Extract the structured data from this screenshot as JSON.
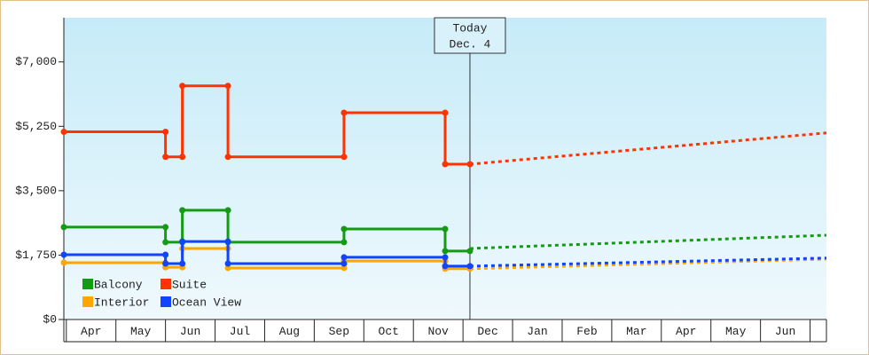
{
  "chart_data": {
    "type": "line",
    "ylim": [
      0,
      8200
    ],
    "yticks": [
      {
        "value": 0,
        "label": "$0"
      },
      {
        "value": 1750,
        "label": "$1,750"
      },
      {
        "value": 3500,
        "label": "$3,500"
      },
      {
        "value": 5250,
        "label": "$5,250"
      },
      {
        "value": 7000,
        "label": "$7,000"
      }
    ],
    "xlim": [
      -0.05,
      15.33
    ],
    "xticks": [
      {
        "value": 0.5,
        "label": "Apr"
      },
      {
        "value": 1.5,
        "label": "May"
      },
      {
        "value": 2.5,
        "label": "Jun"
      },
      {
        "value": 3.5,
        "label": "Jul"
      },
      {
        "value": 4.5,
        "label": "Aug"
      },
      {
        "value": 5.5,
        "label": "Sep"
      },
      {
        "value": 6.5,
        "label": "Oct"
      },
      {
        "value": 7.5,
        "label": "Nov"
      },
      {
        "value": 8.5,
        "label": "Dec"
      },
      {
        "value": 9.5,
        "label": "Jan"
      },
      {
        "value": 10.5,
        "label": "Feb"
      },
      {
        "value": 11.5,
        "label": "Mar"
      },
      {
        "value": 12.5,
        "label": "Apr"
      },
      {
        "value": 13.5,
        "label": "May"
      },
      {
        "value": 14.5,
        "label": "Jun"
      }
    ],
    "today": {
      "x": 8.14,
      "label": [
        "Today",
        "Dec. 4"
      ]
    },
    "series": [
      {
        "name": "Balcony",
        "color": "#159a15",
        "x": [
          -0.05,
          2.0,
          2.0,
          2.34,
          2.34,
          3.26,
          3.26,
          5.6,
          5.6,
          7.64,
          7.64,
          8.14
        ],
        "values": [
          2510,
          2510,
          2100,
          2100,
          2970,
          2970,
          2100,
          2100,
          2460,
          2460,
          1860,
          1860
        ],
        "forecast_x": [
          8.14,
          15.33
        ],
        "forecast_values": [
          1930,
          2290
        ]
      },
      {
        "name": "Suite",
        "color": "#ff3300",
        "x": [
          -0.05,
          2.0,
          2.0,
          2.34,
          2.34,
          3.26,
          3.26,
          5.6,
          5.6,
          7.64,
          7.64,
          8.14
        ],
        "values": [
          5100,
          5100,
          4420,
          4420,
          6350,
          6350,
          4420,
          4420,
          5620,
          5620,
          4220,
          4220
        ],
        "forecast_x": [
          8.14,
          15.33
        ],
        "forecast_values": [
          4220,
          5070
        ]
      },
      {
        "name": "Interior",
        "color": "#ffa500",
        "x": [
          -0.05,
          2.0,
          2.0,
          2.34,
          2.34,
          3.26,
          3.26,
          5.6,
          5.6,
          7.64,
          7.64,
          8.14
        ],
        "values": [
          1545,
          1545,
          1420,
          1420,
          1930,
          1930,
          1400,
          1400,
          1590,
          1590,
          1380,
          1380
        ],
        "forecast_x": [
          8.14,
          15.33
        ],
        "forecast_values": [
          1380,
          1640
        ]
      },
      {
        "name": "Ocean View",
        "color": "#1144ff",
        "x": [
          -0.05,
          2.0,
          2.0,
          2.34,
          2.34,
          3.26,
          3.26,
          5.6,
          5.6,
          7.64,
          7.64,
          8.14
        ],
        "values": [
          1760,
          1760,
          1520,
          1520,
          2120,
          2120,
          1520,
          1520,
          1690,
          1690,
          1450,
          1450
        ],
        "forecast_x": [
          8.14,
          15.33
        ],
        "forecast_values": [
          1450,
          1670
        ]
      }
    ]
  }
}
